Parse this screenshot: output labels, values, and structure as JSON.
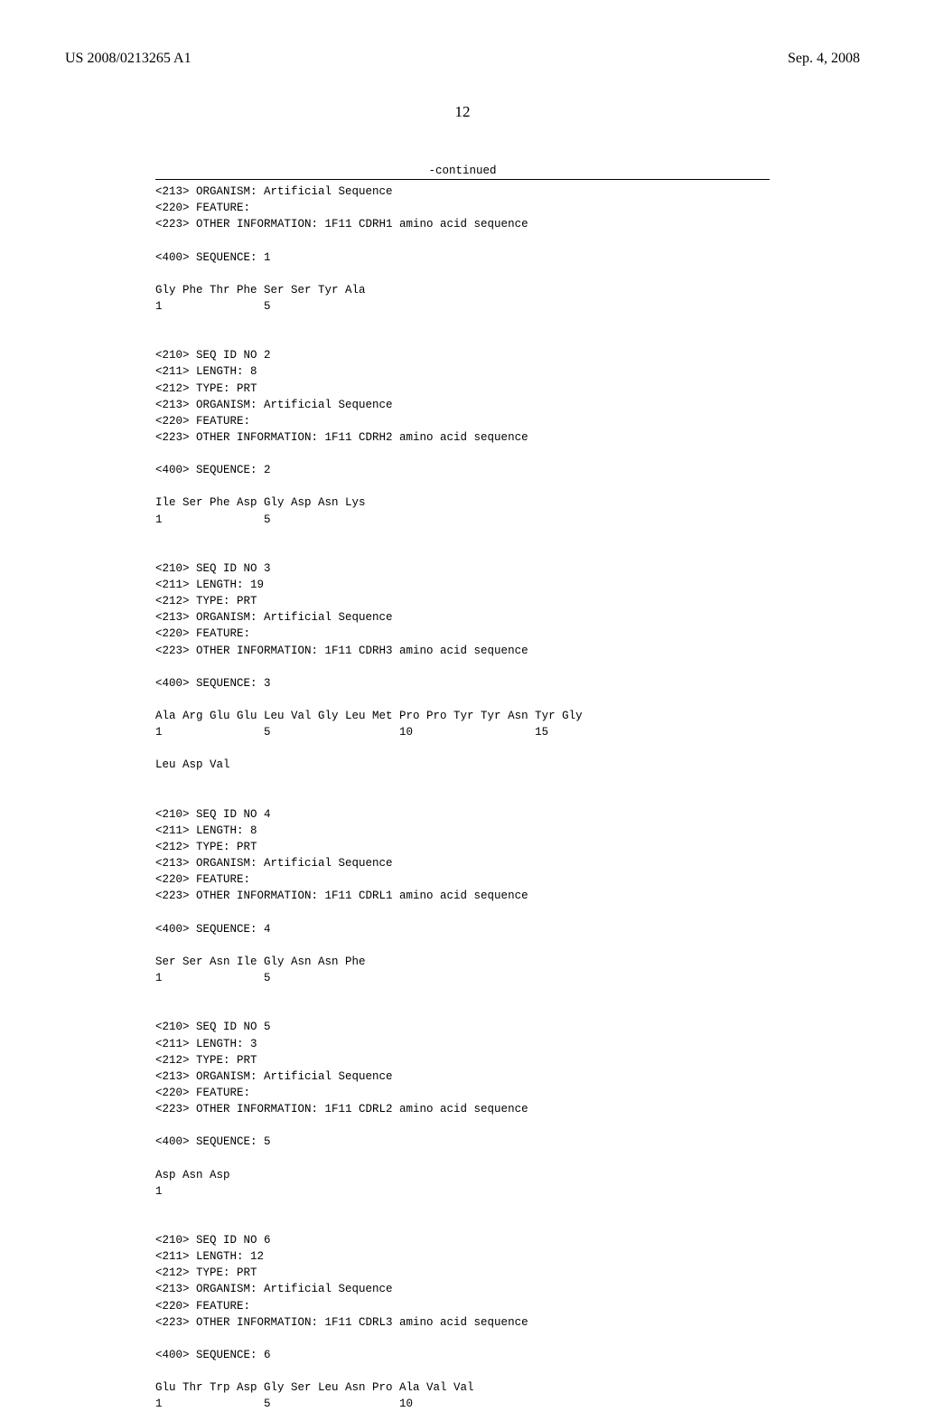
{
  "header": {
    "publication_number": "US 2008/0213265 A1",
    "publication_date": "Sep. 4, 2008"
  },
  "page_number": "12",
  "continued_label": "-continued",
  "sequence_listing_text": "<213> ORGANISM: Artificial Sequence\n<220> FEATURE:\n<223> OTHER INFORMATION: 1F11 CDRH1 amino acid sequence\n\n<400> SEQUENCE: 1\n\nGly Phe Thr Phe Ser Ser Tyr Ala\n1               5\n\n\n<210> SEQ ID NO 2\n<211> LENGTH: 8\n<212> TYPE: PRT\n<213> ORGANISM: Artificial Sequence\n<220> FEATURE:\n<223> OTHER INFORMATION: 1F11 CDRH2 amino acid sequence\n\n<400> SEQUENCE: 2\n\nIle Ser Phe Asp Gly Asp Asn Lys\n1               5\n\n\n<210> SEQ ID NO 3\n<211> LENGTH: 19\n<212> TYPE: PRT\n<213> ORGANISM: Artificial Sequence\n<220> FEATURE:\n<223> OTHER INFORMATION: 1F11 CDRH3 amino acid sequence\n\n<400> SEQUENCE: 3\n\nAla Arg Glu Glu Leu Val Gly Leu Met Pro Pro Tyr Tyr Asn Tyr Gly\n1               5                   10                  15\n\nLeu Asp Val\n\n\n<210> SEQ ID NO 4\n<211> LENGTH: 8\n<212> TYPE: PRT\n<213> ORGANISM: Artificial Sequence\n<220> FEATURE:\n<223> OTHER INFORMATION: 1F11 CDRL1 amino acid sequence\n\n<400> SEQUENCE: 4\n\nSer Ser Asn Ile Gly Asn Asn Phe\n1               5\n\n\n<210> SEQ ID NO 5\n<211> LENGTH: 3\n<212> TYPE: PRT\n<213> ORGANISM: Artificial Sequence\n<220> FEATURE:\n<223> OTHER INFORMATION: 1F11 CDRL2 amino acid sequence\n\n<400> SEQUENCE: 5\n\nAsp Asn Asp\n1\n\n\n<210> SEQ ID NO 6\n<211> LENGTH: 12\n<212> TYPE: PRT\n<213> ORGANISM: Artificial Sequence\n<220> FEATURE:\n<223> OTHER INFORMATION: 1F11 CDRL3 amino acid sequence\n\n<400> SEQUENCE: 6\n\nGlu Thr Trp Asp Gly Ser Leu Asn Pro Ala Val Val\n1               5                   10"
}
